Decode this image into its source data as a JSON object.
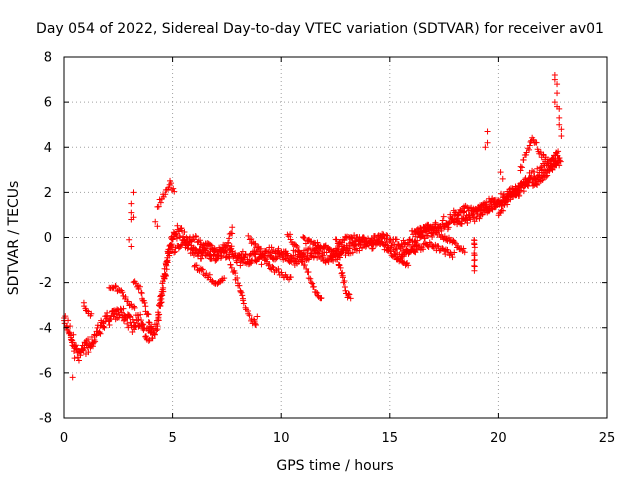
{
  "chart_data": {
    "type": "scatter",
    "title": "Day 054 of 2022, Sidereal Day-to-day VTEC variation (SDTVAR) for receiver av01",
    "xlabel": "GPS time / hours",
    "ylabel": "SDTVAR / TECUs",
    "xlim": [
      0,
      25
    ],
    "ylim": [
      -8,
      8
    ],
    "xticks": [
      0,
      5,
      10,
      15,
      20,
      25
    ],
    "yticks": [
      -8,
      -6,
      -4,
      -2,
      0,
      2,
      4,
      6,
      8
    ],
    "grid": true,
    "marker": "+",
    "color": "#ff0000",
    "trend": [
      [
        0.0,
        -3.7
      ],
      [
        0.3,
        -4.2
      ],
      [
        0.5,
        -5.0
      ],
      [
        0.7,
        -5.2
      ],
      [
        1.0,
        -4.9
      ],
      [
        1.5,
        -4.3
      ],
      [
        2.0,
        -3.6
      ],
      [
        2.5,
        -3.3
      ],
      [
        2.9,
        -3.6
      ],
      [
        3.2,
        -3.9
      ],
      [
        3.4,
        -3.5
      ],
      [
        3.7,
        -4.2
      ],
      [
        4.0,
        -4.4
      ],
      [
        4.3,
        -3.8
      ],
      [
        4.5,
        -2.5
      ],
      [
        4.8,
        -0.8
      ],
      [
        5.0,
        0.1
      ],
      [
        5.3,
        0.3
      ],
      [
        5.6,
        -0.2
      ],
      [
        6.0,
        -0.5
      ],
      [
        6.5,
        -0.7
      ],
      [
        7.0,
        -0.8
      ],
      [
        7.5,
        -0.6
      ],
      [
        8.0,
        -0.9
      ],
      [
        8.5,
        -1.0
      ],
      [
        9.0,
        -0.9
      ],
      [
        9.5,
        -0.7
      ],
      [
        10.0,
        -0.8
      ],
      [
        10.5,
        -0.9
      ],
      [
        11.0,
        -0.8
      ],
      [
        11.5,
        -0.6
      ],
      [
        12.0,
        -0.8
      ],
      [
        12.5,
        -0.7
      ],
      [
        13.0,
        -0.5
      ],
      [
        13.5,
        -0.4
      ],
      [
        14.0,
        -0.2
      ],
      [
        14.5,
        -0.1
      ],
      [
        15.0,
        -0.3
      ],
      [
        15.5,
        -0.5
      ],
      [
        16.0,
        -0.3
      ],
      [
        16.5,
        0.1
      ],
      [
        17.0,
        0.4
      ],
      [
        17.5,
        0.6
      ],
      [
        18.0,
        0.9
      ],
      [
        18.5,
        0.8
      ],
      [
        19.0,
        1.1
      ],
      [
        19.5,
        1.4
      ],
      [
        20.0,
        1.6
      ],
      [
        20.5,
        1.9
      ],
      [
        21.0,
        2.2
      ],
      [
        21.5,
        2.6
      ],
      [
        22.0,
        2.9
      ],
      [
        22.5,
        3.3
      ],
      [
        22.9,
        3.6
      ]
    ],
    "arcs": [
      [
        [
          0.9,
          -3.0
        ],
        [
          1.1,
          -3.3
        ],
        [
          1.3,
          -3.4
        ]
      ],
      [
        [
          2.1,
          -2.1
        ],
        [
          2.6,
          -2.4
        ],
        [
          3.0,
          -2.9
        ],
        [
          3.3,
          -3.2
        ]
      ],
      [
        [
          3.2,
          -1.9
        ],
        [
          3.5,
          -2.3
        ],
        [
          3.8,
          -3.3
        ],
        [
          4.1,
          -4.2
        ]
      ],
      [
        [
          4.3,
          1.4
        ],
        [
          4.6,
          1.9
        ],
        [
          4.9,
          2.4
        ],
        [
          5.1,
          1.9
        ]
      ],
      [
        [
          5.0,
          -0.6
        ],
        [
          5.5,
          -0.2
        ],
        [
          6.0,
          0.0
        ],
        [
          6.5,
          -0.3
        ],
        [
          7.0,
          -0.6
        ],
        [
          7.5,
          -0.4
        ],
        [
          7.8,
          0.5
        ]
      ],
      [
        [
          6.0,
          -1.2
        ],
        [
          6.5,
          -1.6
        ],
        [
          7.0,
          -2.0
        ],
        [
          7.4,
          -1.8
        ]
      ],
      [
        [
          7.6,
          -1.0
        ],
        [
          8.0,
          -2.0
        ],
        [
          8.3,
          -3.0
        ],
        [
          8.6,
          -3.6
        ],
        [
          8.9,
          -3.9
        ]
      ],
      [
        [
          8.5,
          0.0
        ],
        [
          9.0,
          -0.5
        ],
        [
          9.5,
          -1.3
        ],
        [
          10.0,
          -1.6
        ],
        [
          10.5,
          -1.9
        ]
      ],
      [
        [
          10.3,
          0.2
        ],
        [
          10.8,
          -0.6
        ],
        [
          11.2,
          -1.5
        ],
        [
          11.6,
          -2.5
        ],
        [
          11.9,
          -2.7
        ]
      ],
      [
        [
          11.0,
          -0.1
        ],
        [
          11.6,
          -0.3
        ],
        [
          12.2,
          -0.5
        ],
        [
          12.8,
          -0.8
        ]
      ],
      [
        [
          12.6,
          -1.0
        ],
        [
          12.8,
          -1.6
        ],
        [
          13.0,
          -2.5
        ],
        [
          13.2,
          -2.7
        ]
      ],
      [
        [
          12.5,
          -0.2
        ],
        [
          13.2,
          0.0
        ],
        [
          13.8,
          -0.1
        ],
        [
          14.4,
          -0.3
        ]
      ],
      [
        [
          14.5,
          0.0
        ],
        [
          15.0,
          -0.6
        ],
        [
          15.5,
          -1.0
        ],
        [
          15.9,
          -1.3
        ]
      ],
      [
        [
          15.3,
          -0.9
        ],
        [
          16.0,
          -0.6
        ],
        [
          16.8,
          -0.3
        ],
        [
          17.5,
          -0.6
        ],
        [
          18.0,
          -0.8
        ]
      ],
      [
        [
          16.0,
          0.2
        ],
        [
          16.8,
          0.5
        ],
        [
          17.4,
          0.1
        ],
        [
          18.0,
          -0.3
        ],
        [
          18.5,
          -0.6
        ]
      ],
      [
        [
          18.0,
          1.0
        ],
        [
          18.5,
          1.4
        ],
        [
          19.0,
          1.1
        ],
        [
          19.5,
          1.6
        ]
      ],
      [
        [
          18.9,
          0.0
        ],
        [
          18.9,
          -0.6
        ],
        [
          18.9,
          -1.2
        ],
        [
          18.9,
          -1.5
        ]
      ],
      [
        [
          19.5,
          1.2
        ],
        [
          20.0,
          1.5
        ],
        [
          20.5,
          1.8
        ],
        [
          21.0,
          1.8
        ]
      ],
      [
        [
          20.0,
          1.0
        ],
        [
          20.5,
          1.7
        ],
        [
          21.0,
          2.3
        ],
        [
          21.5,
          2.5
        ]
      ],
      [
        [
          21.0,
          3.0
        ],
        [
          21.4,
          4.0
        ],
        [
          21.6,
          4.4
        ],
        [
          22.0,
          3.6
        ],
        [
          22.4,
          3.3
        ],
        [
          22.8,
          3.8
        ]
      ],
      [
        [
          21.6,
          2.2
        ],
        [
          22.0,
          2.6
        ],
        [
          22.4,
          3.0
        ],
        [
          22.8,
          3.4
        ]
      ]
    ],
    "clusters": [
      [
        3.2,
        2.0
      ],
      [
        3.1,
        1.5
      ],
      [
        3.1,
        1.1
      ],
      [
        3.2,
        0.9
      ],
      [
        3.1,
        0.8
      ],
      [
        3.0,
        -0.1
      ],
      [
        3.1,
        -0.4
      ],
      [
        4.3,
        0.5
      ],
      [
        4.2,
        0.7
      ],
      [
        0.4,
        -6.2
      ],
      [
        19.5,
        4.7
      ],
      [
        19.5,
        4.2
      ],
      [
        19.4,
        4.0
      ],
      [
        20.1,
        2.9
      ],
      [
        20.2,
        2.6
      ],
      [
        22.6,
        7.2
      ],
      [
        22.6,
        7.0
      ],
      [
        22.7,
        6.8
      ],
      [
        22.7,
        6.4
      ],
      [
        22.6,
        6.0
      ],
      [
        22.7,
        5.8
      ],
      [
        22.8,
        5.7
      ],
      [
        22.8,
        5.3
      ],
      [
        22.8,
        5.0
      ],
      [
        22.9,
        4.8
      ],
      [
        22.9,
        4.5
      ],
      [
        8.9,
        -3.5
      ],
      [
        8.8,
        -3.8
      ],
      [
        13.1,
        -2.5
      ],
      [
        13.2,
        -2.7
      ]
    ]
  }
}
